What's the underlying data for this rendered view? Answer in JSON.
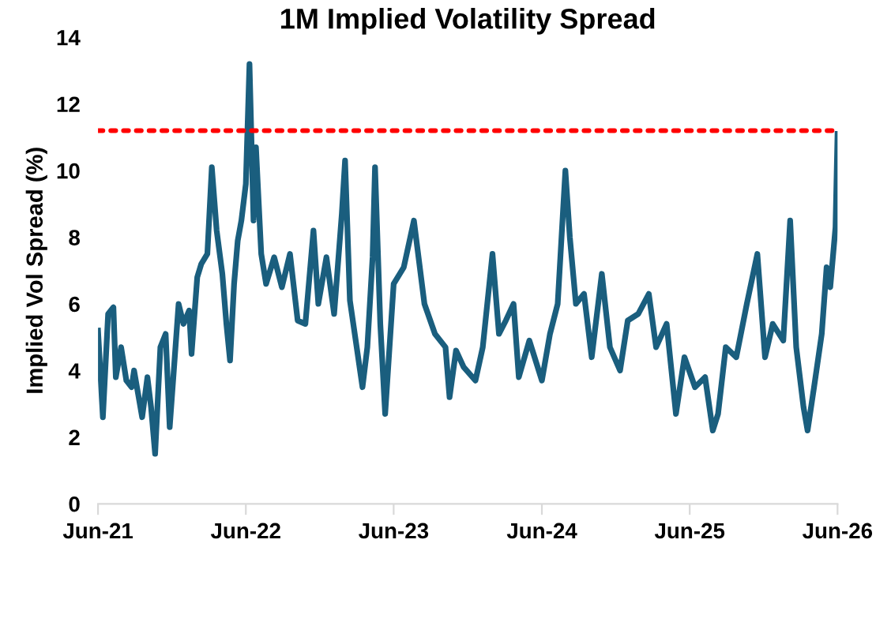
{
  "chart_data": {
    "type": "line",
    "title": "1M Implied Volatility Spread",
    "ylabel": "Implied Vol Spread (%)",
    "x": [
      "2021-06-01",
      "2021-06-13",
      "2021-06-26",
      "2021-07-09",
      "2021-07-15",
      "2021-07-28",
      "2021-08-10",
      "2021-08-23",
      "2021-08-29",
      "2021-09-18",
      "2021-10-01",
      "2021-10-10",
      "2021-10-20",
      "2021-11-02",
      "2021-11-15",
      "2021-11-25",
      "2021-12-04",
      "2021-12-17",
      "2021-12-29",
      "2022-01-12",
      "2022-01-18",
      "2022-02-01",
      "2022-02-11",
      "2022-02-26",
      "2022-03-09",
      "2022-03-21",
      "2022-04-04",
      "2022-04-14",
      "2022-04-23",
      "2022-05-03",
      "2022-05-12",
      "2022-05-21",
      "2022-06-01",
      "2022-06-10",
      "2022-06-20",
      "2022-06-26",
      "2022-07-09",
      "2022-07-21",
      "2022-08-10",
      "2022-08-29",
      "2022-09-18",
      "2022-10-07",
      "2022-10-26",
      "2022-11-15",
      "2022-11-27",
      "2022-12-17",
      "2023-01-05",
      "2023-01-24",
      "2023-02-01",
      "2023-02-13",
      "2023-03-16",
      "2023-03-28",
      "2023-04-10",
      "2023-04-16",
      "2023-04-29",
      "2023-05-11",
      "2023-06-01",
      "2023-06-26",
      "2023-07-21",
      "2023-08-16",
      "2023-09-11",
      "2023-10-07",
      "2023-10-17",
      "2023-11-02",
      "2023-11-21",
      "2023-12-20",
      "2024-01-07",
      "2024-01-31",
      "2024-02-16",
      "2024-03-04",
      "2024-03-23",
      "2024-04-05",
      "2024-05-01",
      "2024-06-01",
      "2024-06-21",
      "2024-07-10",
      "2024-07-29",
      "2024-08-09",
      "2024-08-24",
      "2024-09-13",
      "2024-10-02",
      "2024-10-27",
      "2024-11-16",
      "2024-12-11",
      "2024-12-30",
      "2025-01-25",
      "2025-02-20",
      "2025-03-10",
      "2025-04-05",
      "2025-04-28",
      "2025-05-19",
      "2025-06-14",
      "2025-07-09",
      "2025-07-28",
      "2025-08-10",
      "2025-08-29",
      "2025-09-24",
      "2025-10-20",
      "2025-11-15",
      "2025-12-04",
      "2025-12-23",
      "2026-01-18",
      "2026-02-04",
      "2026-02-19",
      "2026-03-09",
      "2026-03-19",
      "2026-04-04",
      "2026-04-23",
      "2026-05-05",
      "2026-05-14",
      "2026-05-27",
      "2026-06-01"
    ],
    "series": [
      {
        "color": "#1a5e7e",
        "values": [
          5.2,
          2.6,
          5.7,
          5.9,
          3.8,
          4.7,
          3.7,
          3.5,
          4.0,
          2.6,
          3.8,
          2.9,
          1.5,
          4.7,
          5.1,
          2.3,
          3.8,
          6.0,
          5.4,
          5.8,
          4.5,
          6.8,
          7.2,
          7.5,
          10.1,
          8.2,
          6.9,
          5.4,
          4.3,
          6.6,
          7.9,
          8.5,
          9.6,
          13.2,
          8.5,
          10.7,
          7.5,
          6.6,
          7.4,
          6.5,
          7.5,
          5.5,
          5.4,
          8.2,
          6.0,
          7.4,
          5.7,
          8.7,
          10.3,
          6.1,
          3.5,
          4.7,
          7.4,
          10.1,
          5.4,
          2.7,
          6.6,
          7.1,
          8.5,
          6.0,
          5.1,
          4.7,
          3.2,
          4.6,
          4.1,
          3.7,
          4.7,
          7.5,
          5.1,
          5.5,
          6.0,
          3.8,
          4.9,
          3.7,
          5.1,
          6.0,
          10.0,
          8.0,
          6.0,
          6.3,
          4.4,
          6.9,
          4.7,
          4.0,
          5.5,
          5.7,
          6.3,
          4.7,
          5.4,
          2.7,
          4.4,
          3.5,
          3.8,
          2.2,
          2.7,
          4.7,
          4.4,
          6.0,
          7.5,
          4.4,
          5.4,
          4.9,
          8.5,
          4.7,
          2.9,
          2.2,
          3.5,
          5.1,
          7.1,
          6.5,
          8.3,
          11.1
        ]
      }
    ],
    "xlim": [
      "2021-06-01",
      "2026-06-01"
    ],
    "xticks": [
      {
        "value": "2021-06-01",
        "label": "Jun-21"
      },
      {
        "value": "2022-06-01",
        "label": "Jun-22"
      },
      {
        "value": "2023-06-01",
        "label": "Jun-23"
      },
      {
        "value": "2024-06-01",
        "label": "Jun-24"
      },
      {
        "value": "2025-06-01",
        "label": "Jun-25"
      },
      {
        "value": "2026-06-01",
        "label": "Jun-26"
      }
    ],
    "ylim": [
      0,
      14
    ],
    "yticks": [
      0,
      2,
      4,
      6,
      8,
      10,
      12,
      14
    ],
    "ref_lines": [
      {
        "axis": "y",
        "value": 11.2,
        "color": "#ff0000",
        "line_style": "dotted"
      }
    ],
    "grid": false,
    "marker": "none",
    "line_style": "solid"
  }
}
